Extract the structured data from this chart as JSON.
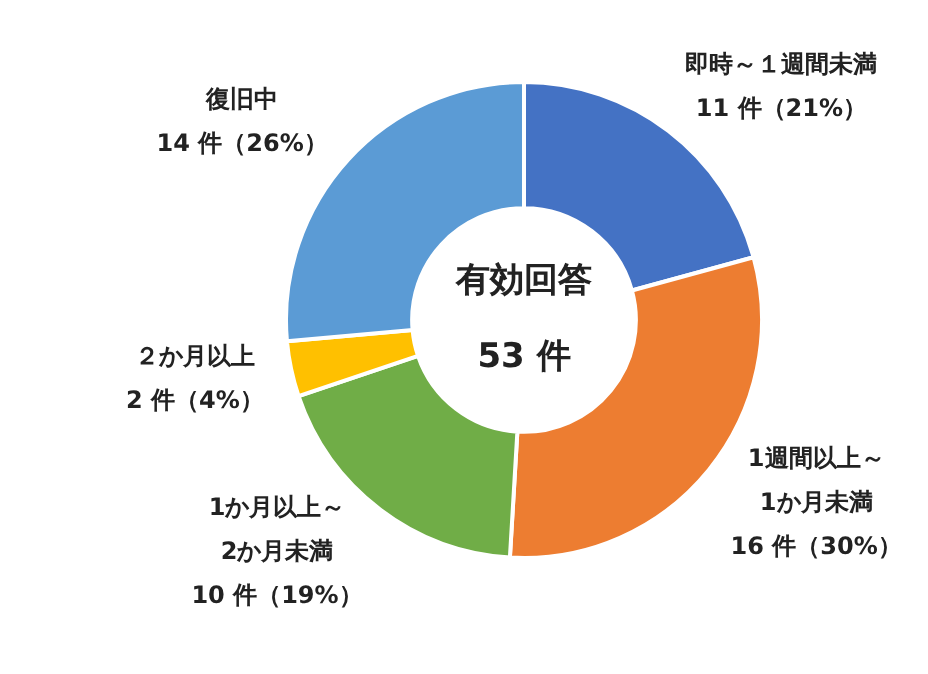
{
  "chart_data": {
    "type": "donut",
    "categories": [
      "即時～１週間未満",
      "1週間以上～\n1か月未満",
      "1か月以上～\n2か月未満",
      "２か月以上",
      "復旧中"
    ],
    "values": [
      11,
      16,
      10,
      2,
      14
    ],
    "value_labels": [
      "11 件（21%）",
      "16 件（30%）",
      "10 件（19%）",
      "2 件（4%）",
      "14 件（26%）"
    ],
    "colors": [
      "#4472c4",
      "#ed7d31",
      "#70ad47",
      "#ffc000",
      "#5b9bd5"
    ],
    "annotations": [
      "有効回答",
      "53 件"
    ],
    "legend": false
  }
}
